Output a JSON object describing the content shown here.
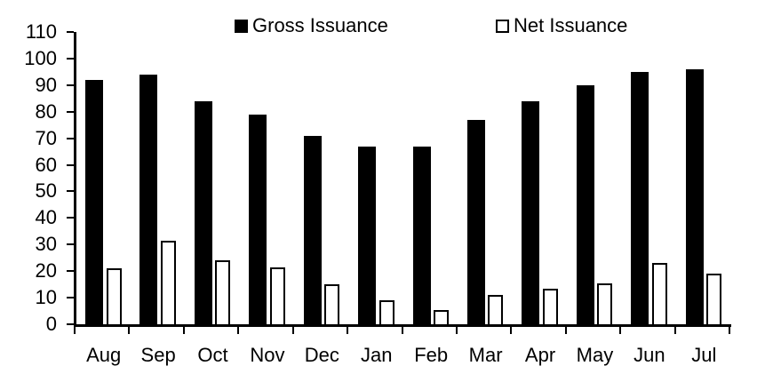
{
  "chart_data": {
    "type": "bar",
    "title": "",
    "xlabel": "",
    "ylabel": "",
    "categories": [
      "Aug",
      "Sep",
      "Oct",
      "Nov",
      "Dec",
      "Jan",
      "Feb",
      "Mar",
      "Apr",
      "May",
      "Jun",
      "Jul"
    ],
    "series": [
      {
        "name": "Gross Issuance",
        "values": [
          92,
          94,
          84,
          79,
          71,
          67,
          67,
          77,
          84,
          90,
          95,
          96
        ]
      },
      {
        "name": "Net Issuance",
        "values": [
          21,
          31.5,
          24,
          21.5,
          15,
          9,
          5.5,
          11,
          13.5,
          15.5,
          23,
          19
        ]
      }
    ],
    "ylim": [
      0,
      110
    ],
    "yticks": [
      0,
      10,
      20,
      30,
      40,
      50,
      60,
      70,
      80,
      90,
      100,
      110
    ],
    "grid": false,
    "legend_position": "top",
    "colors": {
      "gross_fill": "#000000",
      "net_fill": "#ffffff",
      "net_border": "#000000",
      "axis": "#000000",
      "text": "#000000",
      "background": "#ffffff"
    }
  }
}
